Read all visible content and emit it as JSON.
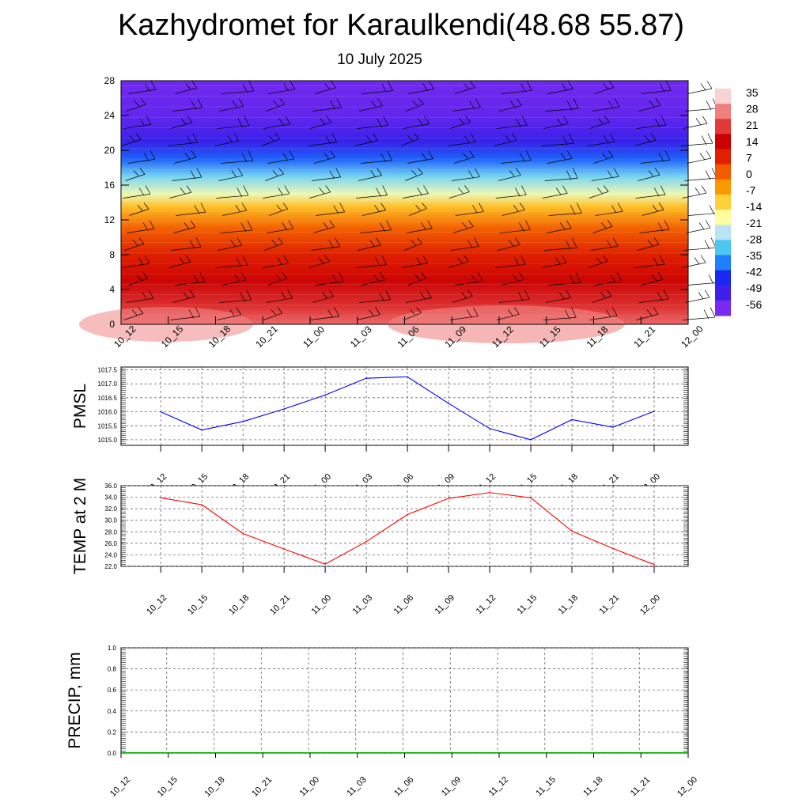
{
  "header": {
    "title": "Kazhydromet for Karaulkendi(48.68 55.87)",
    "subtitle": "10 July 2025"
  },
  "time_labels": [
    "10_12",
    "10_15",
    "10_18",
    "10_21",
    "11_00",
    "11_03",
    "11_06",
    "11_09",
    "11_12",
    "11_15",
    "11_18",
    "11_21",
    "12_00"
  ],
  "chart_data": [
    {
      "type": "heatmap",
      "title": "",
      "xlabel": "",
      "ylabel": "",
      "y_ticks": [
        "0",
        "4",
        "8",
        "12",
        "16",
        "20",
        "24",
        "28"
      ],
      "ylim": [
        0,
        28
      ],
      "colorbar": {
        "labels": [
          "35",
          "28",
          "21",
          "14",
          "7",
          "0",
          "-7",
          "-14",
          "-21",
          "-28",
          "-35",
          "-42",
          "-49",
          "-56"
        ],
        "colors": [
          "#fbd2d2",
          "#f08080",
          "#e03a3a",
          "#cc0000",
          "#e02000",
          "#f25c00",
          "#fb9a00",
          "#ffd23a",
          "#ffffa0",
          "#b8e4f4",
          "#4cc8f0",
          "#1e7fff",
          "#1a28f0",
          "#4020e8",
          "#7a2af0"
        ]
      },
      "layer_temperatures": [
        {
          "y": 0,
          "t": 32
        },
        {
          "y": 2,
          "t": 26
        },
        {
          "y": 5,
          "t": 20
        },
        {
          "y": 8,
          "t": 12
        },
        {
          "y": 11,
          "t": 4
        },
        {
          "y": 13.5,
          "t": -8
        },
        {
          "y": 15,
          "t": -20
        },
        {
          "y": 17,
          "t": -30
        },
        {
          "y": 19,
          "t": -43
        },
        {
          "y": 21,
          "t": -54
        },
        {
          "y": 24,
          "t": -60
        },
        {
          "y": 28,
          "t": -62
        }
      ],
      "grid": false
    },
    {
      "type": "line",
      "ylabel": "PMSL",
      "y_ticks": [
        "1015.0",
        "1015.5",
        "1016.0",
        "1016.5",
        "1017.0",
        "1017.5"
      ],
      "ylim": [
        1014.8,
        1017.6
      ],
      "grid": true,
      "color": "#0000ff",
      "series": [
        {
          "values": [
            1016.0,
            1015.35,
            1015.65,
            1016.1,
            1016.6,
            1017.2,
            1017.25,
            1016.3,
            1015.4,
            1015.0,
            1015.72,
            1015.45,
            1016.02
          ]
        }
      ]
    },
    {
      "type": "line",
      "ylabel": "TEMP at 2 M",
      "y_ticks": [
        "22.0",
        "24.0",
        "26.0",
        "28.0",
        "30.0",
        "32.0",
        "34.0",
        "36.0"
      ],
      "ylim": [
        22,
        36
      ],
      "grid": true,
      "color": "#ff0000",
      "series": [
        {
          "values": [
            33.9,
            32.7,
            27.7,
            25.0,
            22.4,
            26.3,
            31.0,
            33.8,
            34.8,
            33.9,
            28.1,
            25.1,
            22.3
          ]
        }
      ]
    },
    {
      "type": "bar",
      "ylabel": "PRECIP, mm",
      "y_ticks": [
        "0.0",
        "0.2",
        "0.4",
        "0.6",
        "0.8",
        "1.0"
      ],
      "ylim": [
        0,
        1
      ],
      "grid": true,
      "color": "#00aa00",
      "series": [
        {
          "values": [
            0,
            0,
            0,
            0,
            0,
            0,
            0,
            0,
            0,
            0,
            0,
            0,
            0
          ]
        }
      ]
    }
  ]
}
